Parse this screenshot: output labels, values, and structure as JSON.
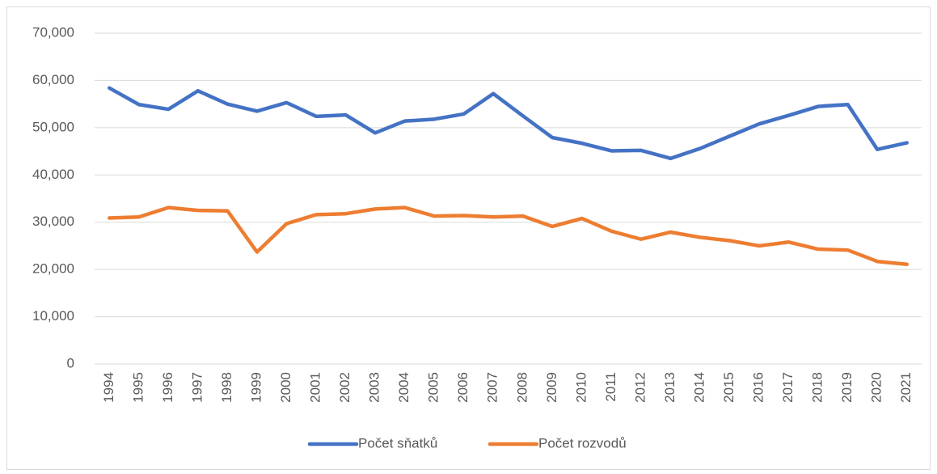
{
  "chart_data": {
    "type": "line",
    "categories": [
      "1994",
      "1995",
      "1996",
      "1997",
      "1998",
      "1999",
      "2000",
      "2001",
      "2002",
      "2003",
      "2004",
      "2005",
      "2006",
      "2007",
      "2008",
      "2009",
      "2010",
      "2011",
      "2012",
      "2013",
      "2014",
      "2015",
      "2016",
      "2017",
      "2018",
      "2019",
      "2020",
      "2021"
    ],
    "series": [
      {
        "name": "Počet sňatků",
        "color": "#4472c4",
        "values": [
          58400,
          54900,
          53900,
          57800,
          55000,
          53500,
          55300,
          52400,
          52700,
          48900,
          51400,
          51800,
          52900,
          57200,
          52500,
          47900,
          46700,
          45100,
          45200,
          43500,
          45600,
          48200,
          50800,
          52600,
          54500,
          54900,
          45400,
          46800
        ]
      },
      {
        "name": "Počet rozvodů",
        "color": "#ed7d31",
        "values": [
          30900,
          31100,
          33100,
          32500,
          32400,
          23700,
          29700,
          31600,
          31800,
          32800,
          33100,
          31300,
          31400,
          31100,
          31300,
          29100,
          30800,
          28100,
          26400,
          27900,
          26800,
          26100,
          25000,
          25800,
          24300,
          24100,
          21700,
          21100
        ]
      }
    ],
    "ylim": [
      0,
      70000
    ],
    "yticks": [
      0,
      {
        "value": 10000,
        "label": "10,000"
      },
      {
        "value": 20000,
        "label": "20,000"
      },
      {
        "value": 30000,
        "label": "30,000"
      },
      {
        "value": 40000,
        "label": "40,000"
      },
      {
        "value": 50000,
        "label": "50,000"
      },
      {
        "value": 60000,
        "label": "60,000"
      },
      {
        "value": 70000,
        "label": "70,000"
      }
    ],
    "grid": true,
    "legend": "bottom"
  }
}
